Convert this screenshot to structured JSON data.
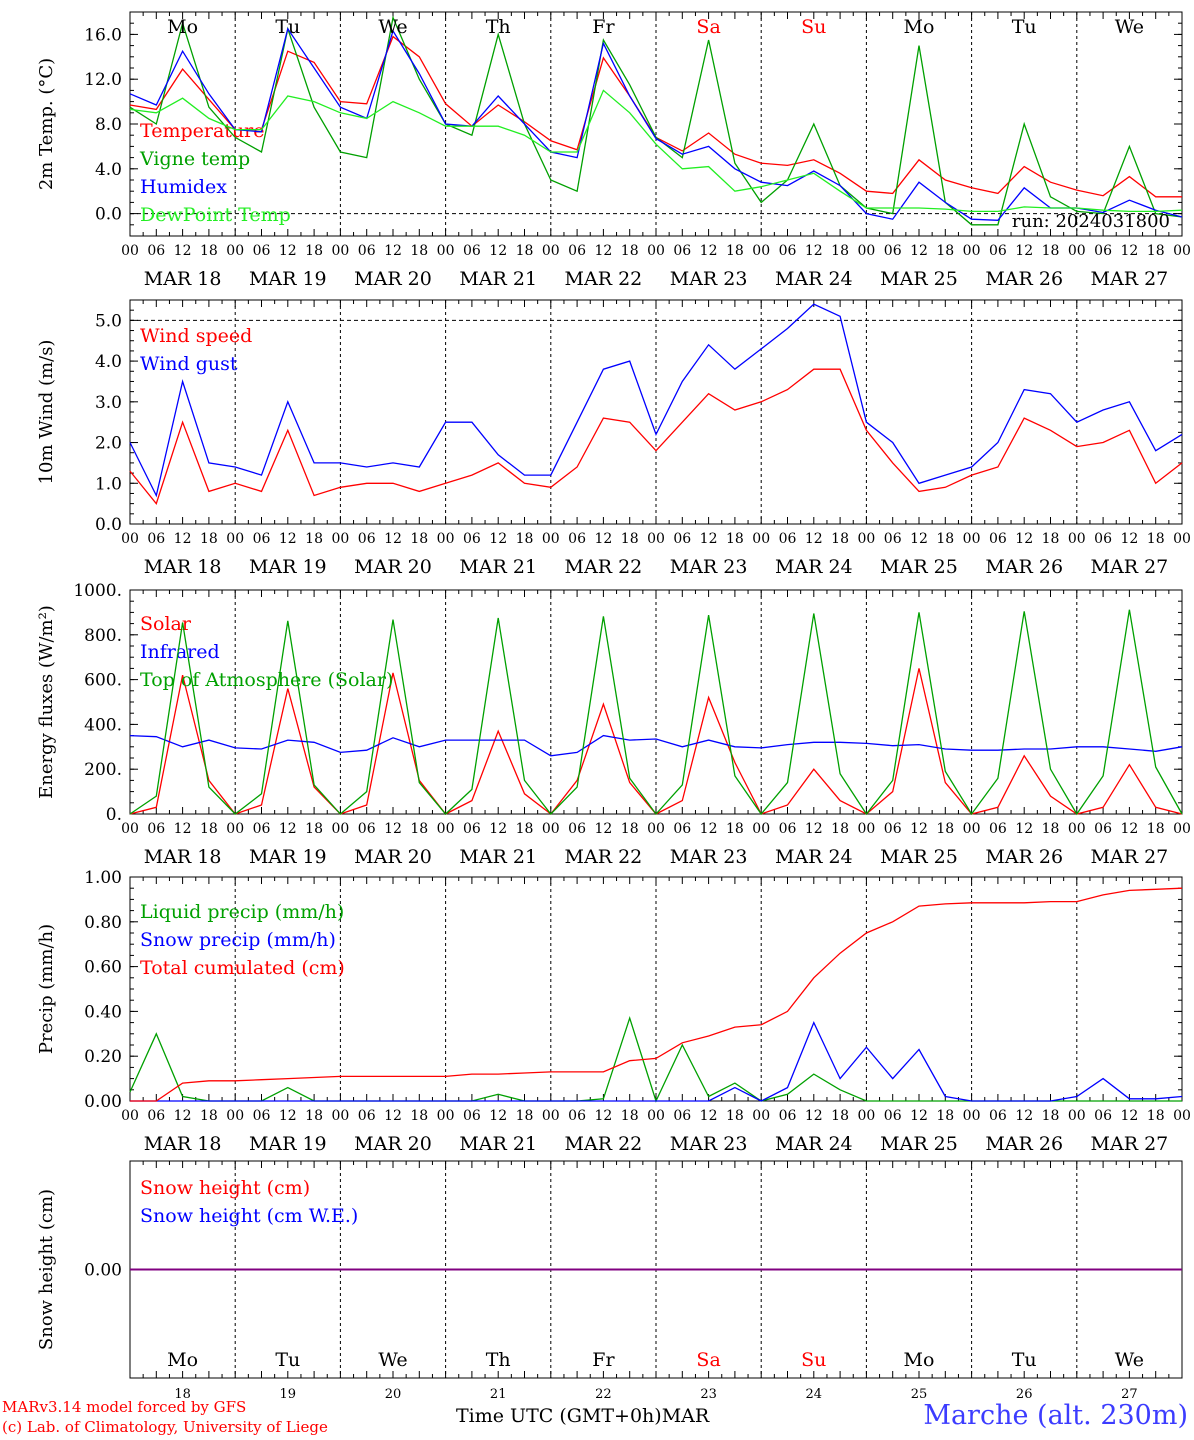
{
  "colors": {
    "temperature": "#ff0000",
    "vigne": "#00a000",
    "humidex": "#0000ff",
    "dewpoint": "#22ee22",
    "weekend": "#ff0000",
    "snow_cm": "#ff0000",
    "snow_we": "#0000ff",
    "snow_line": "#800080"
  },
  "footer": {
    "credit_line1": "MARv3.14 model forced by GFS",
    "credit_line2": "(c) Lab. of Climatology, University of Liege",
    "axis_title": "Time UTC (GMT+0h)MAR",
    "station": "Marche (alt. 230m)"
  },
  "chart_data": [
    {
      "type": "line",
      "panel": "temperature",
      "ylabel": "2m Temp. (°C)",
      "ylim": [
        -2.0,
        18.0
      ],
      "yticks": [
        "16.0",
        "12.0",
        "8.0",
        "4.0",
        "0.0"
      ],
      "ytick_values": [
        16,
        12,
        8,
        4,
        0
      ],
      "hline": 0.0,
      "day_labels": [
        "Mo",
        "Tu",
        "We",
        "Th",
        "Fr",
        "Sa",
        "Su",
        "Mo",
        "Tu",
        "We"
      ],
      "weekend_days": [
        5,
        6
      ],
      "date_labels": [
        "MAR 18",
        "MAR 19",
        "MAR 20",
        "MAR 21",
        "MAR 22",
        "MAR 23",
        "MAR 24",
        "MAR 25",
        "MAR 26",
        "MAR 27"
      ],
      "hour_labels": [
        "00",
        "06",
        "12",
        "18"
      ],
      "annotation": "run: 2024031800",
      "x_hours_step": 6,
      "series": [
        {
          "name": "Temperature",
          "values": [
            9.7,
            9.3,
            12.9,
            10.2,
            7.5,
            7.5,
            14.5,
            13.5,
            10.0,
            9.8,
            15.8,
            14.0,
            9.8,
            7.8,
            9.7,
            8.2,
            6.5,
            5.7,
            13.9,
            10.5,
            6.8,
            5.6,
            7.2,
            5.3,
            4.5,
            4.3,
            4.8,
            3.6,
            2.0,
            1.8,
            4.8,
            3.0,
            2.3,
            1.8,
            4.2,
            2.8,
            2.1,
            1.6,
            3.3,
            1.5,
            1.5
          ]
        },
        {
          "name": "Vigne temp",
          "values": [
            9.5,
            8.0,
            17.0,
            9.5,
            6.8,
            5.5,
            16.5,
            9.5,
            5.5,
            5.0,
            17.5,
            12.0,
            8.0,
            7.0,
            16.0,
            8.0,
            3.0,
            2.0,
            15.5,
            11.5,
            6.8,
            5.0,
            15.5,
            4.5,
            1.0,
            3.0,
            8.0,
            2.5,
            0.5,
            0.0,
            15.0,
            1.0,
            -1.0,
            -1.0,
            8.0,
            1.5,
            0.2,
            0.0,
            6.0,
            0.0,
            -0.3
          ]
        },
        {
          "name": "Humidex",
          "values": [
            10.7,
            9.7,
            14.5,
            10.7,
            7.5,
            7.3,
            16.5,
            13.0,
            9.5,
            8.5,
            16.3,
            12.5,
            8.0,
            7.8,
            10.5,
            8.0,
            5.5,
            5.0,
            15.2,
            10.5,
            6.7,
            5.3,
            6.0,
            4.0,
            2.8,
            2.5,
            3.8,
            2.5,
            0.0,
            -0.5,
            2.8,
            1.0,
            -0.5,
            -0.6,
            2.3,
            0.5,
            0.5,
            0.1,
            1.2,
            0.3,
            -0.3
          ]
        },
        {
          "name": "DewPoint Temp",
          "values": [
            9.3,
            9.0,
            10.3,
            8.5,
            7.5,
            7.5,
            10.5,
            10.0,
            9.0,
            8.5,
            10.0,
            9.0,
            7.8,
            7.8,
            7.8,
            7.0,
            5.5,
            5.5,
            11.0,
            9.0,
            6.2,
            4.0,
            4.2,
            2.0,
            2.4,
            3.0,
            3.6,
            2.0,
            0.5,
            0.5,
            0.5,
            0.4,
            0.2,
            0.2,
            0.6,
            0.5,
            0.5,
            0.3,
            0.2,
            0.2,
            0.3
          ]
        }
      ]
    },
    {
      "type": "line",
      "panel": "wind",
      "ylabel": "10m Wind (m/s)",
      "ylim": [
        0.0,
        5.5
      ],
      "yticks": [
        "5.0",
        "4.0",
        "3.0",
        "2.0",
        "1.0",
        "0.0"
      ],
      "ytick_values": [
        5,
        4,
        3,
        2,
        1,
        0
      ],
      "hline": 5.0,
      "date_labels": [
        "MAR 18",
        "MAR 19",
        "MAR 20",
        "MAR 21",
        "MAR 22",
        "MAR 23",
        "MAR 24",
        "MAR 25",
        "MAR 26",
        "MAR 27"
      ],
      "hour_labels": [
        "00",
        "06",
        "12",
        "18"
      ],
      "x_hours_step": 6,
      "series": [
        {
          "name": "Wind speed",
          "values": [
            1.3,
            0.5,
            2.5,
            0.8,
            1.0,
            0.8,
            2.3,
            0.7,
            0.9,
            1.0,
            1.0,
            0.8,
            1.0,
            1.2,
            1.5,
            1.0,
            0.9,
            1.4,
            2.6,
            2.5,
            1.8,
            2.5,
            3.2,
            2.8,
            3.0,
            3.3,
            3.8,
            3.8,
            2.3,
            1.5,
            0.8,
            0.9,
            1.2,
            1.4,
            2.6,
            2.3,
            1.9,
            2.0,
            2.3,
            1.0,
            1.5
          ]
        },
        {
          "name": "Wind gust",
          "values": [
            2.0,
            0.7,
            3.5,
            1.5,
            1.4,
            1.2,
            3.0,
            1.5,
            1.5,
            1.4,
            1.5,
            1.4,
            2.5,
            2.5,
            1.7,
            1.2,
            1.2,
            2.5,
            3.8,
            4.0,
            2.2,
            3.5,
            4.4,
            3.8,
            4.3,
            4.8,
            5.4,
            5.1,
            2.5,
            2.0,
            1.0,
            1.2,
            1.4,
            2.0,
            3.3,
            3.2,
            2.5,
            2.8,
            3.0,
            1.8,
            2.2
          ]
        }
      ]
    },
    {
      "type": "line",
      "panel": "energy",
      "ylabel": "Energy fluxes (W/m²)",
      "ylim": [
        0,
        1000
      ],
      "yticks": [
        "1000.",
        "800.",
        "600.",
        "400.",
        "200.",
        "0."
      ],
      "ytick_values": [
        1000,
        800,
        600,
        400,
        200,
        0
      ],
      "date_labels": [
        "MAR 18",
        "MAR 19",
        "MAR 20",
        "MAR 21",
        "MAR 22",
        "MAR 23",
        "MAR 24",
        "MAR 25",
        "MAR 26",
        "MAR 27"
      ],
      "hour_labels": [
        "00",
        "06",
        "12",
        "18"
      ],
      "x_hours_step": 6,
      "series": [
        {
          "name": "Solar",
          "values": [
            0,
            30,
            620,
            150,
            0,
            40,
            560,
            120,
            0,
            40,
            630,
            150,
            0,
            60,
            370,
            90,
            0,
            150,
            490,
            140,
            0,
            60,
            520,
            230,
            0,
            40,
            200,
            60,
            0,
            100,
            650,
            140,
            0,
            30,
            260,
            80,
            0,
            30,
            220,
            30,
            0
          ]
        },
        {
          "name": "Infrared",
          "values": [
            350,
            345,
            300,
            330,
            295,
            290,
            330,
            320,
            275,
            285,
            340,
            300,
            330,
            330,
            330,
            330,
            260,
            275,
            350,
            330,
            335,
            300,
            330,
            300,
            295,
            310,
            320,
            320,
            315,
            305,
            310,
            290,
            285,
            285,
            290,
            290,
            300,
            300,
            290,
            280,
            300
          ]
        },
        {
          "name": "Top of Atmosphere (Solar)",
          "values": [
            0,
            80,
            855,
            120,
            0,
            90,
            862,
            130,
            0,
            100,
            868,
            140,
            0,
            110,
            875,
            150,
            0,
            120,
            882,
            160,
            0,
            130,
            888,
            170,
            0,
            140,
            895,
            180,
            0,
            150,
            900,
            190,
            0,
            160,
            905,
            200,
            0,
            170,
            912,
            210,
            0
          ]
        }
      ]
    },
    {
      "type": "line",
      "panel": "precip",
      "ylabel": "Precip (mm/h)",
      "ylim": [
        0.0,
        1.0
      ],
      "yticks": [
        "1.00",
        "0.80",
        "0.60",
        "0.40",
        "0.20",
        "0.00"
      ],
      "ytick_values": [
        1.0,
        0.8,
        0.6,
        0.4,
        0.2,
        0.0
      ],
      "date_labels": [
        "MAR 18",
        "MAR 19",
        "MAR 20",
        "MAR 21",
        "MAR 22",
        "MAR 23",
        "MAR 24",
        "MAR 25",
        "MAR 26",
        "MAR 27"
      ],
      "hour_labels": [
        "00",
        "06",
        "12",
        "18"
      ],
      "x_hours_step": 6,
      "series": [
        {
          "name": "Liquid precip (mm/h)",
          "values": [
            0.04,
            0.3,
            0.02,
            0.0,
            0.0,
            0.0,
            0.06,
            0.0,
            0.0,
            0.0,
            0.0,
            0.0,
            0.0,
            0.0,
            0.03,
            0.0,
            0.0,
            0.0,
            0.01,
            0.37,
            0.0,
            0.25,
            0.02,
            0.08,
            0.0,
            0.03,
            0.12,
            0.05,
            0.0,
            0.0,
            0.0,
            0.0,
            0.0,
            0.0,
            0.0,
            0.0,
            0.0,
            0.0,
            0.0,
            0.0,
            0.0
          ]
        },
        {
          "name": "Snow precip (mm/h)",
          "values": [
            0.0,
            0.0,
            0.0,
            0.0,
            0.0,
            0.0,
            0.0,
            0.0,
            0.0,
            0.0,
            0.0,
            0.0,
            0.0,
            0.0,
            0.0,
            0.0,
            0.0,
            0.0,
            0.0,
            0.0,
            0.0,
            0.0,
            0.0,
            0.06,
            0.0,
            0.06,
            0.35,
            0.1,
            0.24,
            0.1,
            0.23,
            0.02,
            0.0,
            0.0,
            0.0,
            0.0,
            0.02,
            0.1,
            0.01,
            0.01,
            0.02
          ]
        },
        {
          "name": "Total cumulated (cm)",
          "values": [
            0.0,
            0.0,
            0.08,
            0.09,
            0.09,
            0.095,
            0.1,
            0.105,
            0.11,
            0.11,
            0.11,
            0.11,
            0.11,
            0.12,
            0.12,
            0.125,
            0.13,
            0.13,
            0.13,
            0.18,
            0.19,
            0.26,
            0.29,
            0.33,
            0.34,
            0.4,
            0.55,
            0.66,
            0.75,
            0.8,
            0.87,
            0.88,
            0.885,
            0.885,
            0.885,
            0.89,
            0.89,
            0.92,
            0.94,
            0.945,
            0.95
          ]
        }
      ]
    },
    {
      "type": "line",
      "panel": "snow",
      "ylabel": "Snow height (cm)",
      "ylim": [
        -1,
        1
      ],
      "yticks": [
        "0.00"
      ],
      "ytick_values": [
        0
      ],
      "day_labels": [
        "Mo",
        "Tu",
        "We",
        "Th",
        "Fr",
        "Sa",
        "Su",
        "Mo",
        "Tu",
        "We"
      ],
      "weekend_days": [
        5,
        6
      ],
      "day_numbers": [
        "18",
        "19",
        "20",
        "21",
        "22",
        "23",
        "24",
        "25",
        "26",
        "27"
      ],
      "x_hours_step": 6,
      "series": [
        {
          "name": "Snow height (cm)",
          "values": [
            0,
            0,
            0,
            0,
            0,
            0,
            0,
            0,
            0,
            0,
            0,
            0,
            0,
            0,
            0,
            0,
            0,
            0,
            0,
            0,
            0,
            0,
            0,
            0,
            0,
            0,
            0,
            0,
            0,
            0,
            0,
            0,
            0,
            0,
            0,
            0,
            0,
            0,
            0,
            0,
            0
          ]
        },
        {
          "name": "Snow height (cm W.E.)",
          "values": [
            0,
            0,
            0,
            0,
            0,
            0,
            0,
            0,
            0,
            0,
            0,
            0,
            0,
            0,
            0,
            0,
            0,
            0,
            0,
            0,
            0,
            0,
            0,
            0,
            0,
            0,
            0,
            0,
            0,
            0,
            0,
            0,
            0,
            0,
            0,
            0,
            0,
            0,
            0,
            0,
            0
          ]
        }
      ]
    }
  ]
}
